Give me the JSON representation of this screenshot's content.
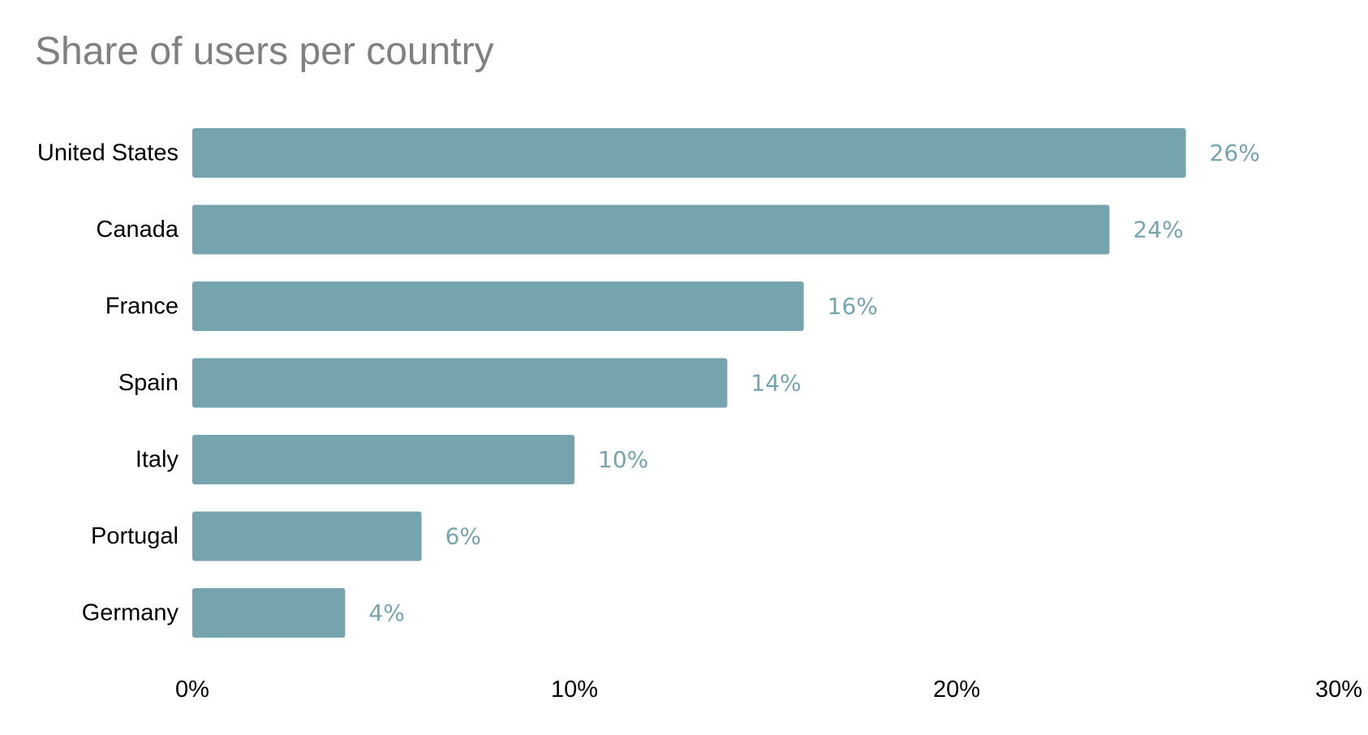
{
  "chart_data": {
    "type": "bar",
    "orientation": "horizontal",
    "title": "Share of users per country",
    "categories": [
      "United States",
      "Canada",
      "France",
      "Spain",
      "Italy",
      "Portugal",
      "Germany"
    ],
    "values": [
      26,
      24,
      16,
      14,
      10,
      6,
      4
    ],
    "value_labels": [
      "26%",
      "24%",
      "16%",
      "14%",
      "10%",
      "6%",
      "4%"
    ],
    "x_ticks": [
      0,
      10,
      20,
      30
    ],
    "x_tick_labels": [
      "0%",
      "10%",
      "20%",
      "30%"
    ],
    "xlim": [
      0,
      30
    ],
    "xlabel": "",
    "ylabel": "",
    "unit": "%",
    "grid": false,
    "legend": "none",
    "bar_color": "#76a4ae",
    "value_label_color": "#76a4ae",
    "title_color": "#808080"
  }
}
